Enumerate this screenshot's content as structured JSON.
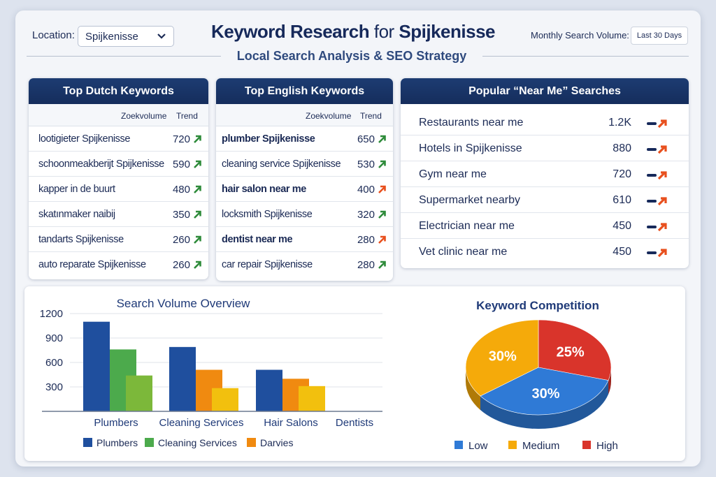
{
  "header": {
    "location_label": "Location:",
    "location_value": "Spijkenisse",
    "title_a": "Keyword Research",
    "title_for": "for",
    "title_b": "Spijkenisse",
    "subtitle": "Local Search Analysis & SEO Strategy",
    "msv_label": "Monthly Search Volume:",
    "msv_value": "Last 30 Days"
  },
  "dutch": {
    "title": "Top Dutch Keywords",
    "col_volume": "Zoekvolume",
    "col_trend": "Trend",
    "rows": [
      {
        "keyword": "lootigieter Spijkenisse",
        "volume": "720",
        "trend": "up"
      },
      {
        "keyword": "schoonmeakberijt Spijkenisse",
        "volume": "590",
        "trend": "up"
      },
      {
        "keyword": "kapper in de buurt",
        "volume": "480",
        "trend": "up"
      },
      {
        "keyword": "skatınmaker naibij",
        "volume": "350",
        "trend": "up"
      },
      {
        "keyword": "tandarts Spijkenisse",
        "volume": "260",
        "trend": "up"
      },
      {
        "keyword": "auto reparate Spijkenisse",
        "volume": "260",
        "trend": "up"
      }
    ]
  },
  "english": {
    "title": "Top English Keywords",
    "col_volume": "Zoekvolume",
    "col_trend": "Trend",
    "rows": [
      {
        "keyword": "plumber Spijkenisse",
        "volume": "650",
        "trend": "up"
      },
      {
        "keyword": "cleaning service Spijkenisse",
        "volume": "530",
        "trend": "up"
      },
      {
        "keyword": "hair salon near me",
        "volume": "400",
        "trend": "hot"
      },
      {
        "keyword": "locksmith Spijkenisse",
        "volume": "320",
        "trend": "up"
      },
      {
        "keyword": "dentist near me",
        "volume": "280",
        "trend": "hot"
      },
      {
        "keyword": "car repair Spijkenisse",
        "volume": "280",
        "trend": "up"
      }
    ]
  },
  "near": {
    "title": "Popular “Near Me” Searches",
    "rows": [
      {
        "keyword": "Restaurants near me",
        "volume": "1.2K"
      },
      {
        "keyword": "Hotels in Spijkenisse",
        "volume": "880"
      },
      {
        "keyword": "Gym near me",
        "volume": "720"
      },
      {
        "keyword": "Supermarket nearby",
        "volume": "610"
      },
      {
        "keyword": "Electrician near me",
        "volume": "450"
      },
      {
        "keyword": "Vet clinic near me",
        "volume": "450"
      }
    ]
  },
  "colors": {
    "up": "#2e8b3a",
    "hot": "#e8501e",
    "navy": "#16295a"
  },
  "chart_data": [
    {
      "type": "bar",
      "title": "Search Volume Overview",
      "categories": [
        "Plumbers",
        "Cleaning Services",
        "Hair Salons",
        "Dentists"
      ],
      "yticks": [
        300,
        600,
        900,
        1200
      ],
      "ylim": [
        0,
        1200
      ],
      "grid": true,
      "series": [
        {
          "values": [
            1100,
            790,
            510,
            null
          ],
          "colors": [
            "#1f4f9e",
            "#1f4f9e",
            "#1f4f9e"
          ]
        },
        {
          "values": [
            760,
            510,
            400,
            null
          ],
          "colors": [
            "#4caa4c",
            "#f08a10",
            "#f08a10"
          ]
        },
        {
          "values": [
            440,
            285,
            310,
            null
          ],
          "colors": [
            "#7cb83a",
            "#f2c00e",
            "#f2c00e"
          ]
        }
      ],
      "legend": [
        {
          "name": "Plumbers",
          "color": "#1f4f9e"
        },
        {
          "name": "Cleaning Services",
          "color": "#4caa4c"
        },
        {
          "name": "Darvies",
          "color": "#f08a10"
        }
      ],
      "legend_position": "bottom"
    },
    {
      "type": "pie",
      "title": "Keyword Competition",
      "slices": [
        {
          "name": "High",
          "label": "25%",
          "value": 25,
          "color": "#d9342b"
        },
        {
          "name": "Low",
          "label": "30%",
          "value": 30,
          "color": "#2f7ad6"
        },
        {
          "name": "Medium",
          "label": "30%",
          "value": 30,
          "color": "#f5aa0a"
        }
      ],
      "legend_position": "bottom",
      "style": "3d"
    }
  ]
}
